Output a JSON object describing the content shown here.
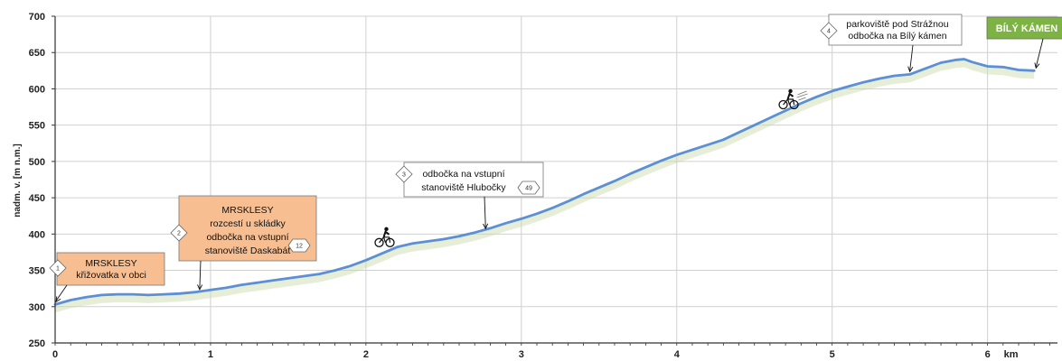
{
  "chart_data": {
    "type": "area",
    "ylabel": "nadm. v. [m n.m.]",
    "x_unit_label": "km",
    "xlim": [
      0,
      6.45
    ],
    "ylim": [
      250,
      700
    ],
    "x_ticks": [
      0,
      1,
      2,
      3,
      4,
      5,
      6
    ],
    "x_tick_labels": [
      "0",
      "1",
      "2",
      "3",
      "4",
      "5",
      "6"
    ],
    "y_ticks": [
      250,
      300,
      350,
      400,
      450,
      500,
      550,
      600,
      650,
      700
    ],
    "grid": true,
    "colors": {
      "line": "#5b8fd6",
      "shadow": "#c9d9a8",
      "orange_box": "#f7be92",
      "green_box": "#7cb342"
    },
    "series": [
      {
        "x": [
          0,
          0.1,
          0.2,
          0.3,
          0.4,
          0.5,
          0.6,
          0.7,
          0.8,
          0.9,
          1.0,
          1.1,
          1.2,
          1.3,
          1.4,
          1.5,
          1.6,
          1.7,
          1.8,
          1.9,
          2.0,
          2.1,
          2.2,
          2.3,
          2.4,
          2.5,
          2.6,
          2.7,
          2.8,
          2.9,
          3.0,
          3.1,
          3.2,
          3.3,
          3.4,
          3.5,
          3.6,
          3.7,
          3.8,
          3.9,
          4.0,
          4.1,
          4.2,
          4.3,
          4.4,
          4.5,
          4.6,
          4.7,
          4.8,
          4.9,
          5.0,
          5.1,
          5.2,
          5.3,
          5.4,
          5.5,
          5.6,
          5.7,
          5.8,
          5.85,
          5.9,
          6.0,
          6.1,
          6.2,
          6.3
        ],
        "y": [
          303,
          309,
          313,
          316,
          317,
          317,
          316,
          317,
          318,
          320,
          323,
          326,
          330,
          333,
          336,
          339,
          342,
          345,
          350,
          356,
          364,
          373,
          382,
          387,
          390,
          393,
          397,
          402,
          408,
          415,
          421,
          428,
          436,
          445,
          455,
          464,
          473,
          483,
          492,
          501,
          509,
          516,
          523,
          530,
          540,
          550,
          560,
          570,
          580,
          589,
          597,
          603,
          609,
          614,
          618,
          620,
          628,
          636,
          640,
          641,
          637,
          631,
          630,
          626,
          625
        ]
      }
    ],
    "annotations": [
      {
        "number": "1",
        "lines": [
          "MRSKLESY",
          "křižovatka v obci"
        ],
        "x": 0,
        "y": 303
      },
      {
        "number": "2",
        "lines": [
          "MRSKLESY",
          "rozcestí u skládky",
          "odbočka na vstupní",
          "stanoviště Daskabát"
        ],
        "badge": "12",
        "x": 0.93,
        "y": 321
      },
      {
        "number": "3",
        "lines": [
          "odbočka na vstupní",
          "stanoviště Hlubočky"
        ],
        "badge": "49",
        "x": 2.77,
        "y": 405
      },
      {
        "number": "4",
        "lines": [
          "parkoviště pod Strážnou",
          "odbočka na Bílý kámen"
        ],
        "x": 5.5,
        "y": 620
      },
      {
        "label": "BÍLÝ KÁMEN",
        "x": 6.3,
        "y": 625
      }
    ]
  }
}
